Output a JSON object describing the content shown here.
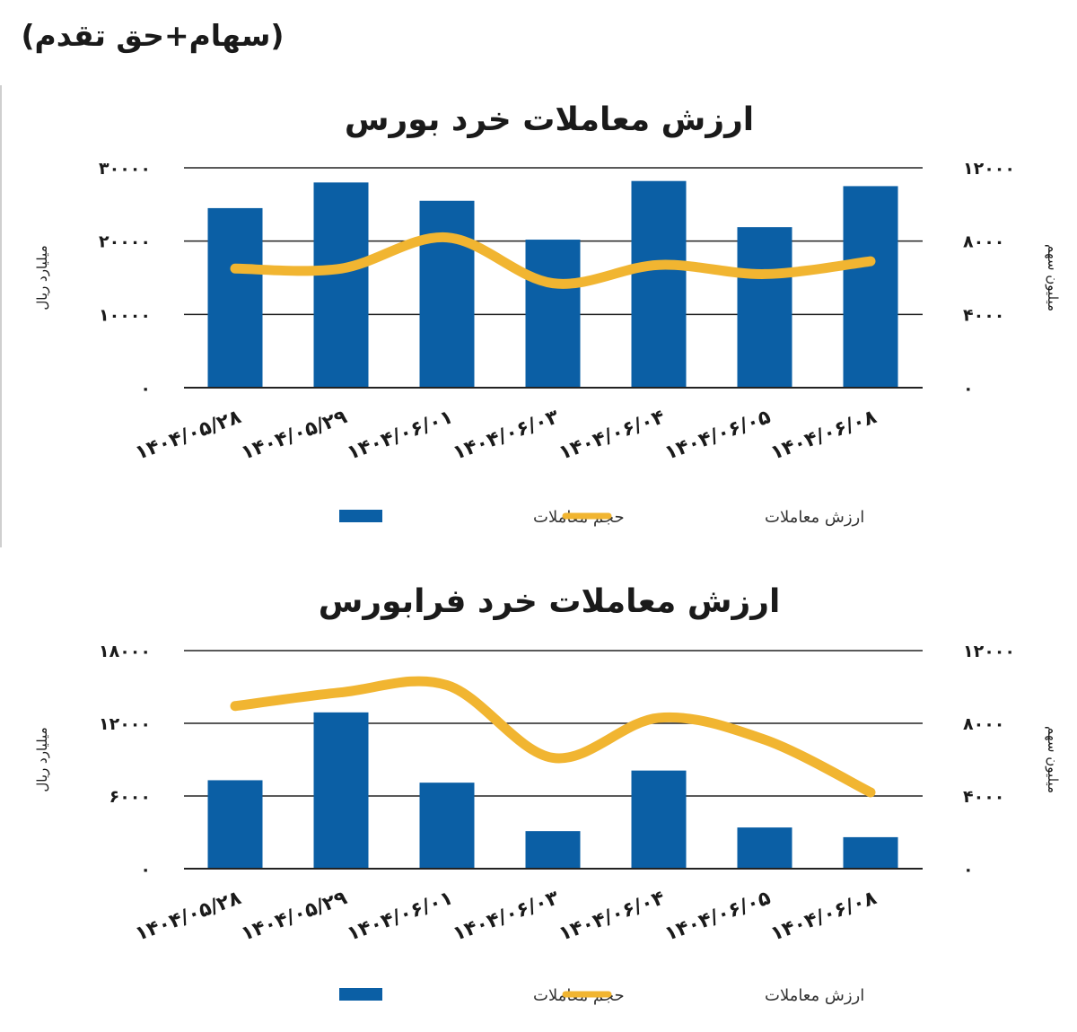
{
  "header": {
    "title": "(سهام+حق تقدم)"
  },
  "colors": {
    "bar": "#0b5fa5",
    "line": "#f1b531",
    "grid": "#222222"
  },
  "chart_data": [
    {
      "type": "bar",
      "title": "ارزش معاملات خرد بورس",
      "ylabel": "میلیارد ریال",
      "y2label": "میلیون سهم",
      "ylim": [
        0,
        30000
      ],
      "y2lim": [
        0,
        12000
      ],
      "yticks": [
        "۳۰۰۰۰",
        "۲۰۰۰۰",
        "۱۰۰۰۰",
        "۰"
      ],
      "y2ticks": [
        "۱۲۰۰۰",
        "۸۰۰۰",
        "۴۰۰۰",
        "۰"
      ],
      "categories": [
        "۱۴۰۴/۰۵/۲۸",
        "۱۴۰۴/۰۵/۲۹",
        "۱۴۰۴/۰۶/۰۱",
        "۱۴۰۴/۰۶/۰۳",
        "۱۴۰۴/۰۶/۰۴",
        "۱۴۰۴/۰۶/۰۵",
        "۱۴۰۴/۰۶/۰۸"
      ],
      "series": [
        {
          "name": "حجم معاملات",
          "type": "bar",
          "axis": "left",
          "values": [
            24500,
            28000,
            25500,
            20200,
            28200,
            21900,
            27500
          ]
        },
        {
          "name": "ارزش معاملات",
          "type": "line",
          "axis": "right",
          "values": [
            6500,
            6500,
            8200,
            5700,
            6700,
            6200,
            6900
          ]
        }
      ],
      "legend": "bottom",
      "grid": true
    },
    {
      "type": "bar",
      "title": "ارزش معاملات خرد فرابورس",
      "ylabel": "میلیارد ریال",
      "y2label": "میلیون سهم",
      "ylim": [
        0,
        18000
      ],
      "y2lim": [
        0,
        12000
      ],
      "yticks": [
        "۱۸۰۰۰",
        "۱۲۰۰۰",
        "۶۰۰۰",
        "۰"
      ],
      "y2ticks": [
        "۱۲۰۰۰",
        "۸۰۰۰",
        "۴۰۰۰",
        "۰"
      ],
      "categories": [
        "۱۴۰۴/۰۵/۲۸",
        "۱۴۰۴/۰۵/۲۹",
        "۱۴۰۴/۰۶/۰۱",
        "۱۴۰۴/۰۶/۰۳",
        "۱۴۰۴/۰۶/۰۴",
        "۱۴۰۴/۰۶/۰۵",
        "۱۴۰۴/۰۶/۰۸"
      ],
      "series": [
        {
          "name": "حجم معاملات",
          "type": "bar",
          "axis": "left",
          "values": [
            7300,
            12900,
            7100,
            3100,
            8100,
            3400,
            2600
          ]
        },
        {
          "name": "ارزش معاملات",
          "type": "line",
          "axis": "right",
          "values": [
            8950,
            9700,
            10100,
            6100,
            8300,
            7100,
            4200
          ]
        }
      ],
      "legend": "bottom",
      "grid": true
    }
  ]
}
